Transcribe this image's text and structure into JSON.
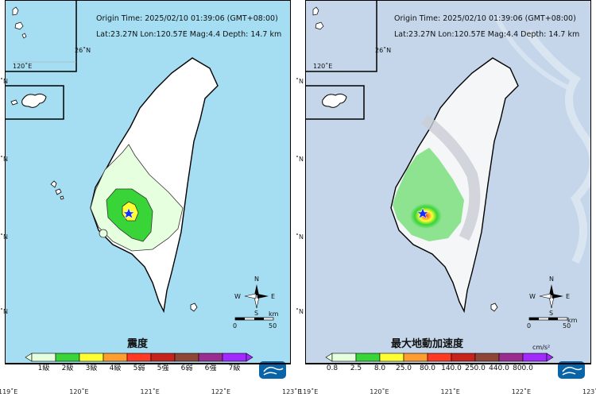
{
  "origin_time": "Origin Time:  2025/02/10   01:39:06   (GMT+08:00)",
  "location": "Lat:23.27N  Lon:120.57E  Mag:4.4  Depth: 14.7 km",
  "inset_lon": "120˚E",
  "inset_lat": "26˚N",
  "ytick_label": "˚N",
  "x_ticks": [
    "119˚E",
    "120˚E",
    "121˚E",
    "122˚E",
    "123˚E"
  ],
  "compass": {
    "n": "N",
    "s": "S",
    "e": "E",
    "w": "W"
  },
  "scale": {
    "zero": "0",
    "fifty": "50",
    "unit": "km"
  },
  "left": {
    "title": "震度",
    "legend_labels": [
      "1級",
      "2級",
      "3級",
      "4級",
      "5弱",
      "5強",
      "6弱",
      "6強",
      "7級"
    ],
    "legend_colors": [
      "#e6ffdf",
      "#38d438",
      "#ffff32",
      "#ff9d2e",
      "#ff3a22",
      "#c7231d",
      "#8f4637",
      "#9a2d8f",
      "#a22aff"
    ]
  },
  "right": {
    "title": "最大地動加速度",
    "unit": "cm/s²",
    "legend_labels": [
      "0.8",
      "2.5",
      "8.0",
      "25.0",
      "80.0",
      "140.0",
      "250.0",
      "440.0",
      "800.0"
    ]
  },
  "colors": {
    "ocean_left": "#a5ddf2",
    "ocean_right": "#c5d6ea",
    "land": "#ffffff"
  }
}
